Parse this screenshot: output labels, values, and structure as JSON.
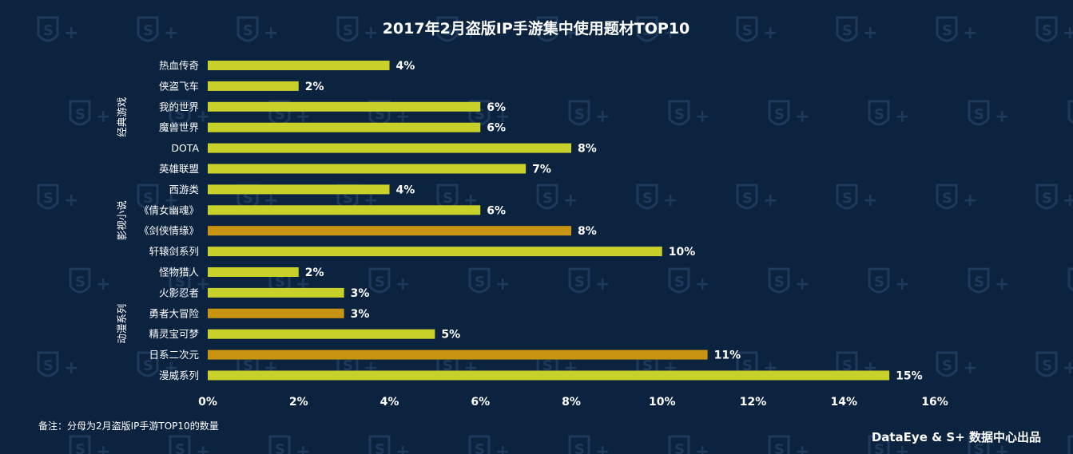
{
  "chart_data": {
    "type": "bar",
    "orientation": "horizontal",
    "title": "2017年2月盗版IP手游集中使用题材TOP10",
    "categories": [
      "热血传奇",
      "侠盗飞车",
      "我的世界",
      "魔兽世界",
      "DOTA",
      "英雄联盟",
      "西游类",
      "《倩女幽魂》",
      "《剑侠情缘》",
      "轩辕剑系列",
      "怪物猎人",
      "火影忍者",
      "勇者大冒险",
      "精灵宝可梦",
      "日系二次元",
      "漫威系列"
    ],
    "values": [
      4,
      2,
      6,
      6,
      8,
      7,
      4,
      6,
      8,
      10,
      2,
      3,
      3,
      5,
      11,
      15
    ],
    "value_labels": [
      "4%",
      "2%",
      "6%",
      "6%",
      "8%",
      "7%",
      "4%",
      "6%",
      "8%",
      "10%",
      "2%",
      "3%",
      "3%",
      "5%",
      "11%",
      "15%"
    ],
    "highlighted": [
      false,
      false,
      false,
      false,
      false,
      false,
      false,
      false,
      true,
      false,
      false,
      false,
      true,
      false,
      true,
      false
    ],
    "groups": [
      {
        "label": "经典游戏",
        "from": 0,
        "to": 5
      },
      {
        "label": "影视小说",
        "from": 6,
        "to": 9
      },
      {
        "label": "动漫系列",
        "from": 10,
        "to": 15
      }
    ],
    "xlim": [
      0,
      16
    ],
    "xticks": [
      "0%",
      "2%",
      "4%",
      "6%",
      "8%",
      "10%",
      "12%",
      "14%",
      "16%"
    ],
    "colors": {
      "bar": "#c8d12a",
      "highlight": "#c99411"
    },
    "grid": false
  },
  "footnote": "备注：分母为2月盗版IP手游TOP10的数量",
  "credit": "DataEye & S+ 数据中心出品",
  "watermark_text": "S+",
  "colors": {
    "background": "#0c2340",
    "watermark": "#1d3a5c"
  }
}
